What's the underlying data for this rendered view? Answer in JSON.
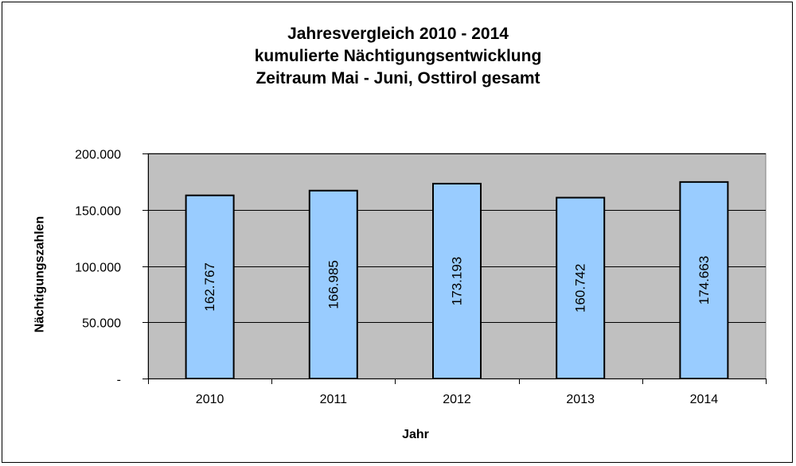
{
  "chart_data": {
    "type": "bar",
    "title_lines": [
      "Jahresvergleich 2010 - 2014",
      "kumulierte Nächtigungsentwicklung",
      "Zeitraum Mai - Juni, Osttirol gesamt"
    ],
    "xlabel": "Jahr",
    "ylabel": "Nächtigungszahlen",
    "categories": [
      "2010",
      "2011",
      "2012",
      "2013",
      "2014"
    ],
    "values": [
      162767,
      166985,
      173193,
      160742,
      174663
    ],
    "value_labels": [
      "162.767",
      "166.985",
      "173.193",
      "160.742",
      "174.663"
    ],
    "ylim": [
      0,
      200000
    ],
    "yticks": [
      0,
      50000,
      100000,
      150000,
      200000
    ],
    "ytick_labels": [
      "-",
      "50.000",
      "100.000",
      "150.000",
      "200.000"
    ],
    "grid": true,
    "colors": {
      "plot_background": "#c0c0c0",
      "bar_fill": "#99ccff",
      "bar_stroke": "#000000",
      "grid": "#000000"
    }
  }
}
